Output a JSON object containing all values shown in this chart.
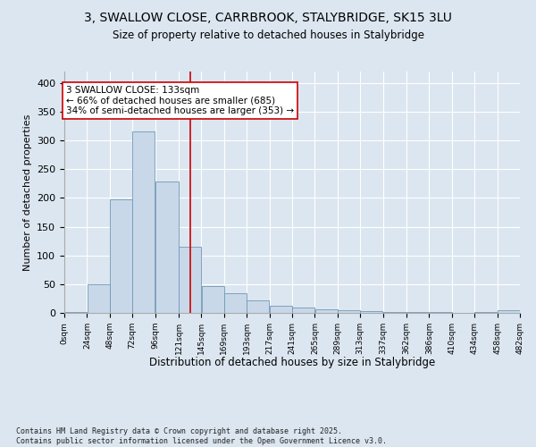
{
  "title_line1": "3, SWALLOW CLOSE, CARRBROOK, STALYBRIDGE, SK15 3LU",
  "title_line2": "Size of property relative to detached houses in Stalybridge",
  "xlabel": "Distribution of detached houses by size in Stalybridge",
  "ylabel": "Number of detached properties",
  "bin_edges": [
    0,
    24,
    48,
    72,
    96,
    121,
    145,
    169,
    193,
    217,
    241,
    265,
    289,
    313,
    337,
    362,
    386,
    410,
    434,
    458,
    482
  ],
  "bar_heights": [
    2,
    50,
    197,
    316,
    228,
    115,
    46,
    34,
    22,
    13,
    9,
    6,
    5,
    3,
    2,
    2,
    1,
    0,
    2,
    5
  ],
  "bar_color": "#c8d8e8",
  "bar_edge_color": "#7098b8",
  "property_size": 133,
  "red_line_color": "#cc0000",
  "annotation_text": "3 SWALLOW CLOSE: 133sqm\n← 66% of detached houses are smaller (685)\n34% of semi-detached houses are larger (353) →",
  "annotation_box_color": "#ffffff",
  "annotation_box_edge_color": "#cc0000",
  "background_color": "#dce6f0",
  "plot_bg_color": "#dce6f0",
  "fig_bg_color": "#dce6f0",
  "grid_color": "#ffffff",
  "ylim": [
    0,
    420
  ],
  "footer_text": "Contains HM Land Registry data © Crown copyright and database right 2025.\nContains public sector information licensed under the Open Government Licence v3.0.",
  "tick_labels": [
    "0sqm",
    "24sqm",
    "48sqm",
    "72sqm",
    "96sqm",
    "121sqm",
    "145sqm",
    "169sqm",
    "193sqm",
    "217sqm",
    "241sqm",
    "265sqm",
    "289sqm",
    "313sqm",
    "337sqm",
    "362sqm",
    "386sqm",
    "410sqm",
    "434sqm",
    "458sqm",
    "482sqm"
  ]
}
